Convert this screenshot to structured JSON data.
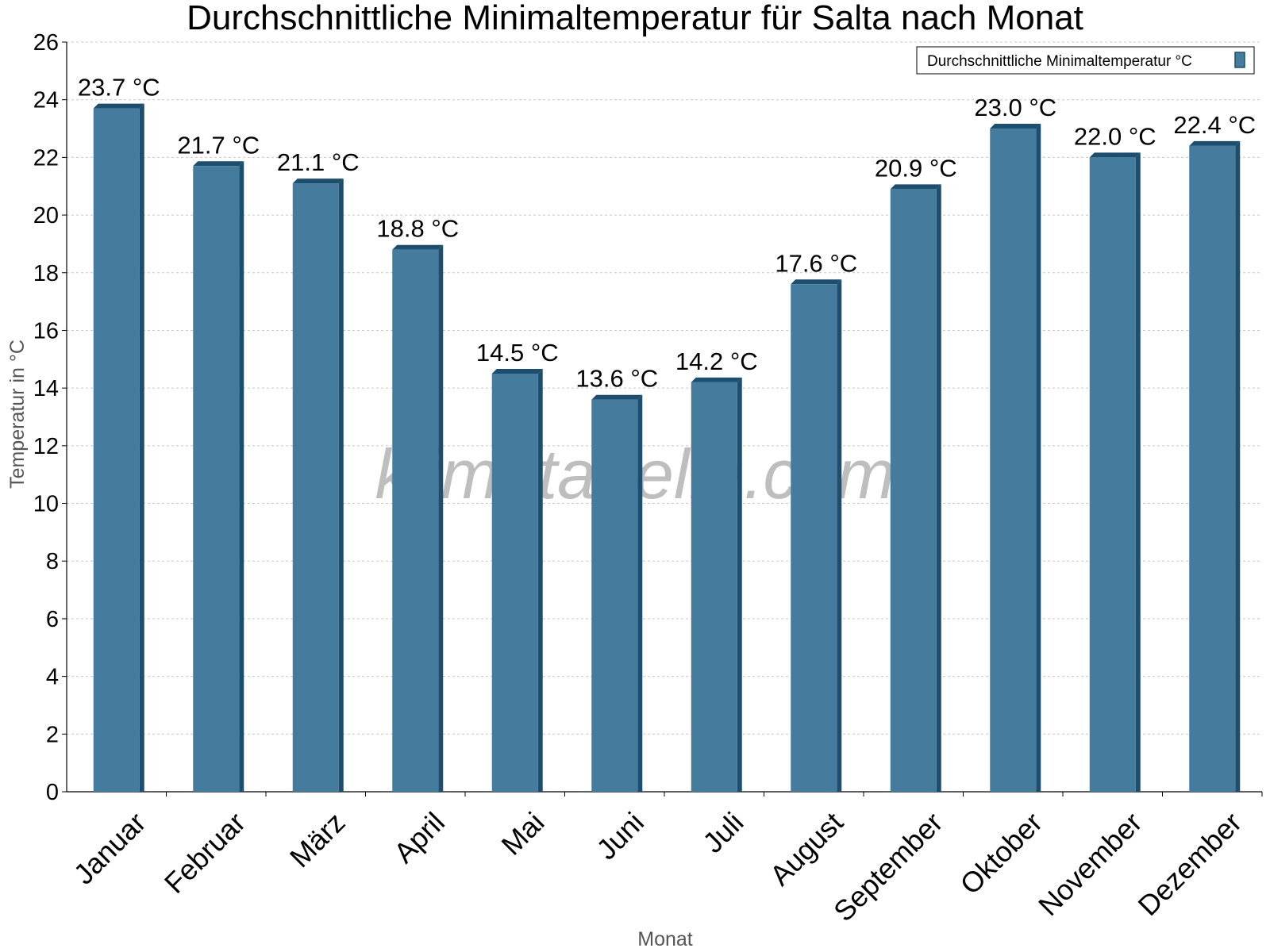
{
  "chart_data": {
    "type": "bar",
    "title": "Durchschnittliche Minimaltemperatur für Salta nach Monat",
    "xlabel": "Monat",
    "ylabel": "Temperatur in °C",
    "categories": [
      "Januar",
      "Februar",
      "März",
      "April",
      "Mai",
      "Juni",
      "Juli",
      "August",
      "September",
      "Oktober",
      "November",
      "Dezember"
    ],
    "series": [
      {
        "name": "Durchschnittliche Minimaltemperatur °C",
        "values": [
          23.7,
          21.7,
          21.1,
          18.8,
          14.5,
          13.6,
          14.2,
          17.6,
          20.9,
          23.0,
          22.0,
          22.4
        ],
        "color": "#457b9d"
      }
    ],
    "value_labels": [
      "23.7 °C",
      "21.7 °C",
      "21.1 °C",
      "18.8 °C",
      "14.5 °C",
      "13.6 °C",
      "14.2 °C",
      "17.6 °C",
      "20.9 °C",
      "23.0 °C",
      "22.0 °C",
      "22.4 °C"
    ],
    "ylim": [
      0,
      26
    ],
    "yticks": [
      0,
      2,
      4,
      6,
      8,
      10,
      12,
      14,
      16,
      18,
      20,
      22,
      24,
      26
    ],
    "grid": true,
    "legend_position": "top-right"
  },
  "watermark": "klimatabelle.com",
  "colors": {
    "bar": "#457b9d",
    "bar_edge": "#1d4e6e",
    "grid": "#c8c8c8"
  }
}
